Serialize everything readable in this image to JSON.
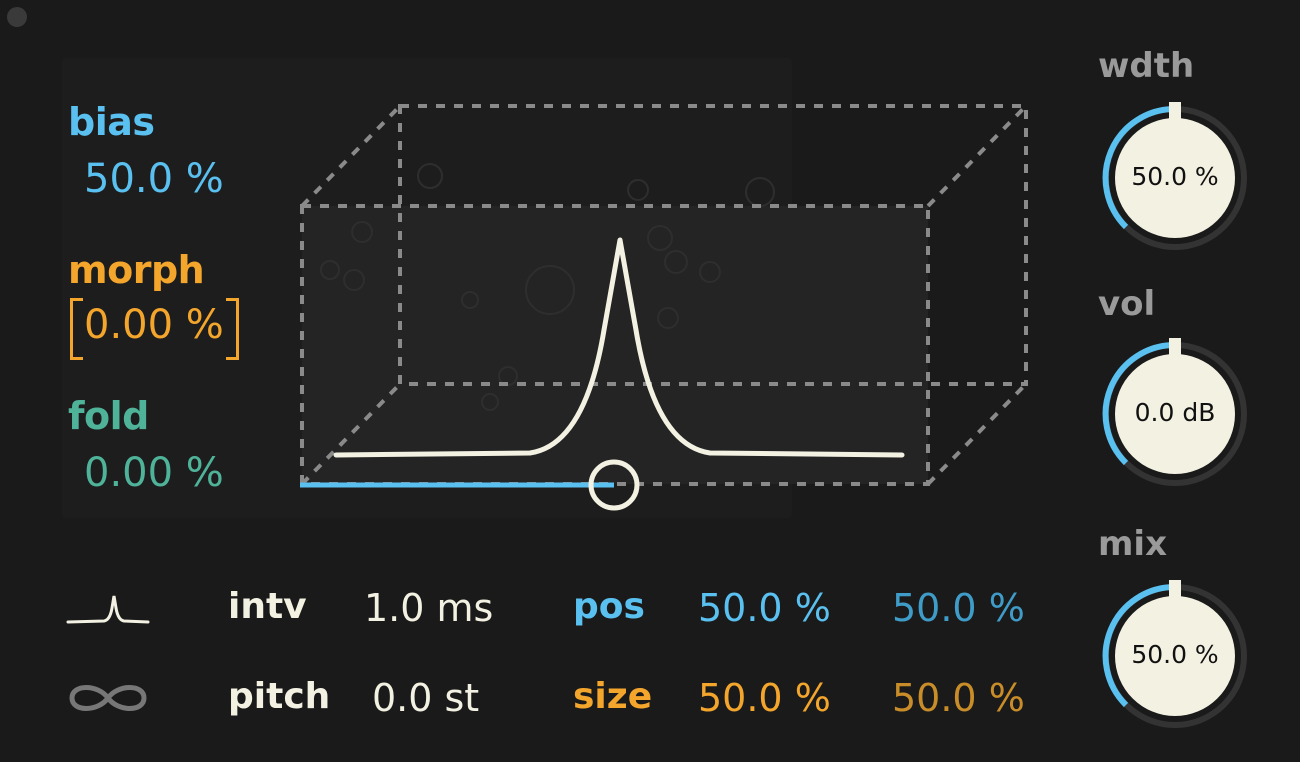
{
  "window": {
    "dot_color": "#3a3a3a"
  },
  "params": {
    "bias": {
      "label": "bias",
      "value": "50.0 %"
    },
    "morph": {
      "label": "morph",
      "value": "0.00 %"
    },
    "fold": {
      "label": "fold",
      "value": "0.00 %"
    }
  },
  "rows": {
    "intv": {
      "label": "intv",
      "value": "1.0 ms",
      "icon": "grain-shape-icon"
    },
    "pitch": {
      "label": "pitch",
      "value": "0.0 st",
      "icon": "infinity-icon"
    },
    "pos": {
      "label": "pos",
      "value1": "50.0 %",
      "value2": "50.0 %"
    },
    "size": {
      "label": "size",
      "value1": "50.0 %",
      "value2": "50.0 %"
    }
  },
  "knobs": {
    "wdth": {
      "label": "wdth",
      "value": "50.0 %"
    },
    "vol": {
      "label": "vol",
      "value": "0.0 dB"
    },
    "mix": {
      "label": "mix",
      "value": "50.0 %"
    }
  },
  "colors": {
    "background": "#1a1a1a",
    "blue": "#5ac0f0",
    "orange": "#f4a52c",
    "teal": "#4fb39a",
    "cream": "#f3f1e2"
  }
}
